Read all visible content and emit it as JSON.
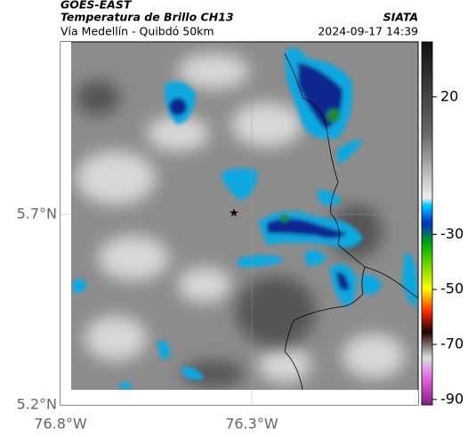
{
  "header": {
    "source": "GOES-EAST",
    "title": "Temperatura de Brillo CH13",
    "agency": "SIATA",
    "subtitle": "Vía Medellín - Quibdó 50km",
    "timestamp": "2024-09-17 14:39"
  },
  "map": {
    "xlim": [
      -76.8,
      -75.865
    ],
    "ylim": [
      5.2,
      6.153
    ],
    "xticks": [
      {
        "value": -76.8,
        "label": "76.8°W"
      },
      {
        "value": -76.3,
        "label": "76.3°W"
      }
    ],
    "yticks": [
      {
        "value": 5.2,
        "label": "5.2°N"
      },
      {
        "value": 5.7,
        "label": "5.7°N"
      }
    ]
  },
  "colorbar": {
    "lim": [
      40,
      -92
    ],
    "ticks": [
      20,
      -30,
      -50,
      -70,
      -90
    ]
  }
}
